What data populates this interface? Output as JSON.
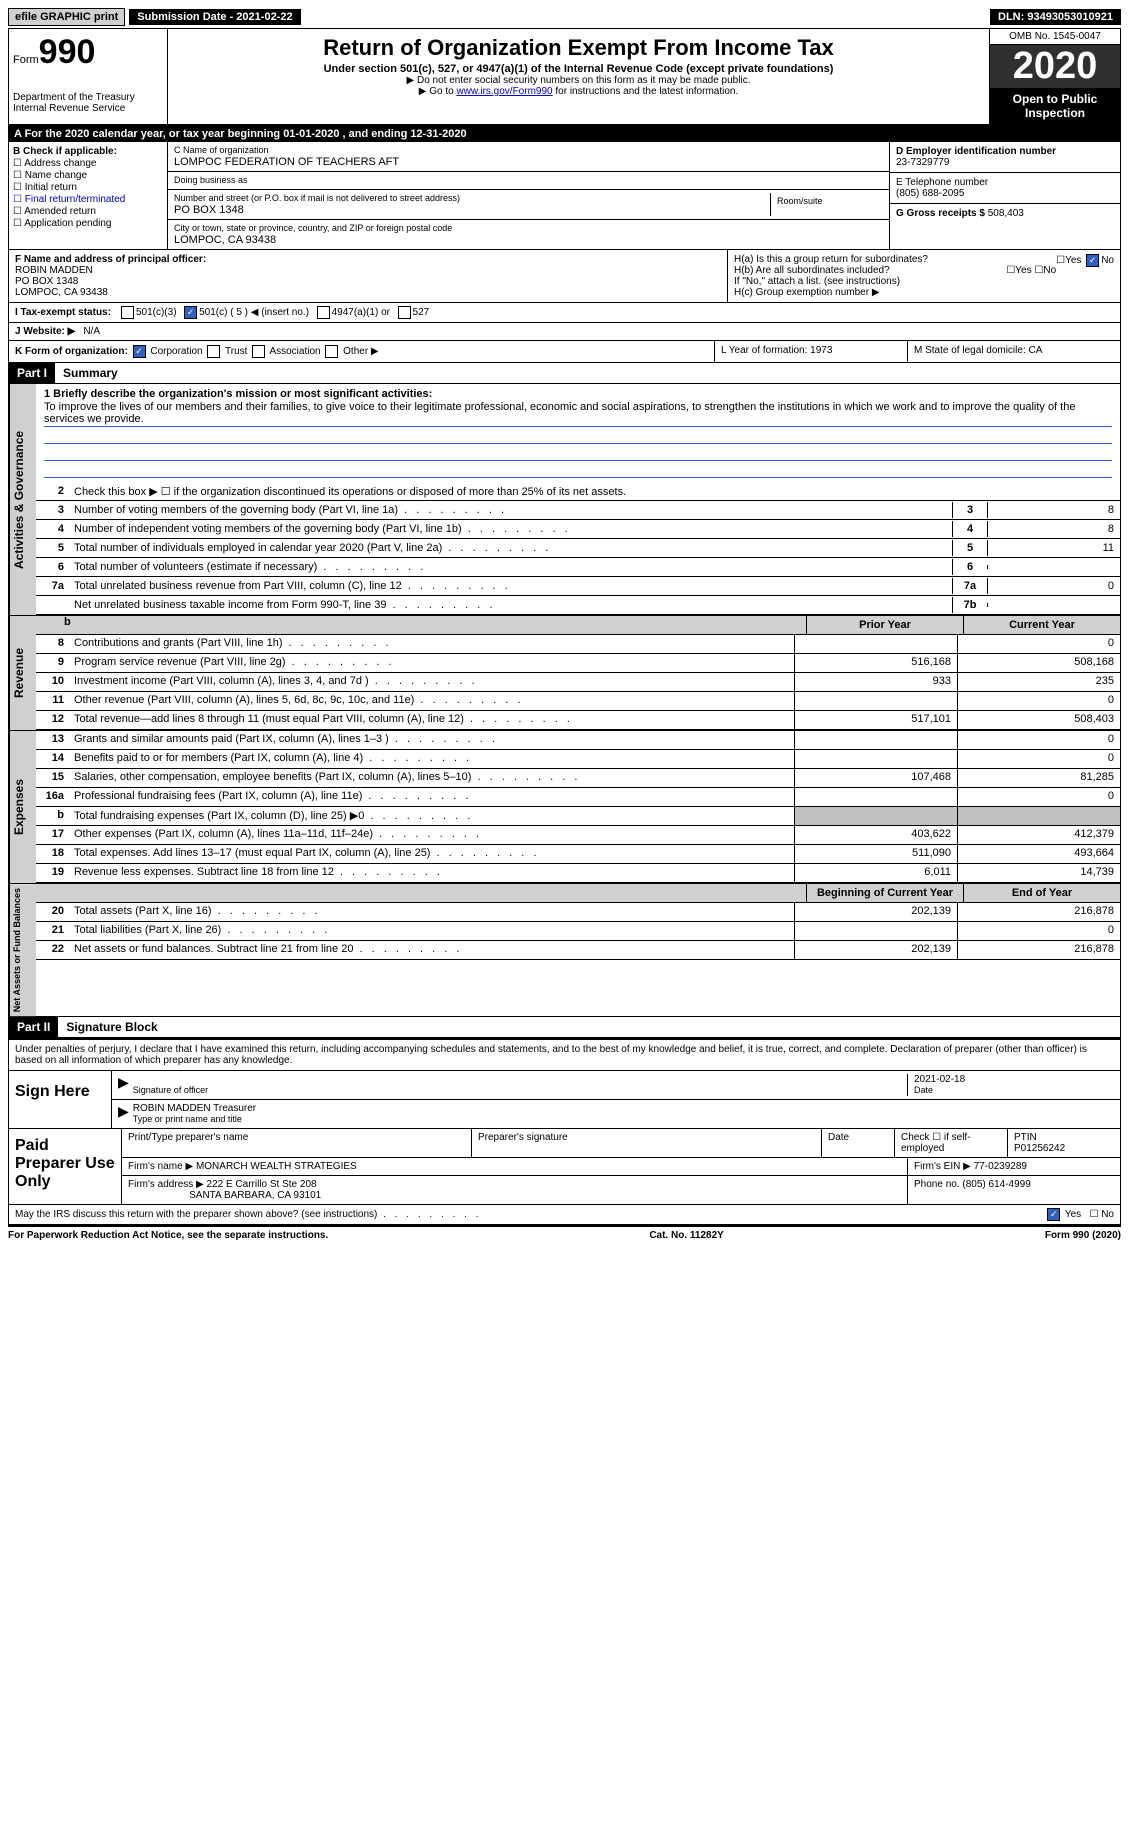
{
  "topbar": {
    "efile": "efile GRAPHIC print",
    "submission": "Submission Date - 2021-02-22",
    "dln": "DLN: 93493053010921"
  },
  "header": {
    "form_label": "Form",
    "form_num": "990",
    "dept": "Department of the Treasury",
    "irs": "Internal Revenue Service",
    "title": "Return of Organization Exempt From Income Tax",
    "subtitle": "Under section 501(c), 527, or 4947(a)(1) of the Internal Revenue Code (except private foundations)",
    "note1": "▶ Do not enter social security numbers on this form as it may be made public.",
    "note2_pre": "▶ Go to ",
    "note2_link": "www.irs.gov/Form990",
    "note2_post": " for instructions and the latest information.",
    "omb": "OMB No. 1545-0047",
    "year": "2020",
    "open": "Open to Public Inspection"
  },
  "period": "A For the 2020 calendar year, or tax year beginning 01-01-2020   , and ending 12-31-2020",
  "checkB": {
    "title": "B Check if applicable:",
    "items": [
      "Address change",
      "Name change",
      "Initial return",
      "Final return/terminated",
      "Amended return",
      "Application pending"
    ]
  },
  "blockC": {
    "name_label": "C Name of organization",
    "name": "LOMPOC FEDERATION OF TEACHERS AFT",
    "dba_label": "Doing business as",
    "dba": "",
    "street_label": "Number and street (or P.O. box if mail is not delivered to street address)",
    "street": "PO BOX 1348",
    "room_label": "Room/suite",
    "city_label": "City or town, state or province, country, and ZIP or foreign postal code",
    "city": "LOMPOC, CA  93438"
  },
  "blockD": {
    "ein_label": "D Employer identification number",
    "ein": "23-7329779",
    "tel_label": "E Telephone number",
    "tel": "(805) 688-2095",
    "gross_label": "G Gross receipts $",
    "gross": "508,403"
  },
  "blockF": {
    "label": "F  Name and address of principal officer:",
    "name": "ROBIN MADDEN",
    "street": "PO BOX 1348",
    "city": "LOMPOC, CA  93438"
  },
  "blockH": {
    "ha": "H(a)  Is this a group return for subordinates?",
    "hb": "H(b)  Are all subordinates included?",
    "hb_note": "If \"No,\" attach a list. (see instructions)",
    "hc": "H(c)  Group exemption number ▶"
  },
  "lineI": {
    "label": "I   Tax-exempt status:",
    "opts": [
      "501(c)(3)",
      "501(c) ( 5 ) ◀ (insert no.)",
      "4947(a)(1) or",
      "527"
    ]
  },
  "lineJ": {
    "label": "J   Website: ▶",
    "val": "N/A"
  },
  "lineK": {
    "label": "K Form of organization:",
    "opts": [
      "Corporation",
      "Trust",
      "Association",
      "Other ▶"
    ],
    "l": "L Year of formation: 1973",
    "m": "M State of legal domicile: CA"
  },
  "part1": {
    "label": "Part I",
    "title": "Summary",
    "mission_q": "1  Briefly describe the organization's mission or most significant activities:",
    "mission": "To improve the lives of our members and their families, to give voice to their legitimate professional, economic and social aspirations, to strengthen the institutions in which we work and to improve the quality of the services we provide.",
    "line2": "Check this box ▶ ☐  if the organization discontinued its operations or disposed of more than 25% of its net assets.",
    "gov_lines": [
      {
        "n": "3",
        "t": "Number of voting members of the governing body (Part VI, line 1a)",
        "c": "3",
        "v": "8"
      },
      {
        "n": "4",
        "t": "Number of independent voting members of the governing body (Part VI, line 1b)",
        "c": "4",
        "v": "8"
      },
      {
        "n": "5",
        "t": "Total number of individuals employed in calendar year 2020 (Part V, line 2a)",
        "c": "5",
        "v": "11"
      },
      {
        "n": "6",
        "t": "Total number of volunteers (estimate if necessary)",
        "c": "6",
        "v": ""
      },
      {
        "n": "7a",
        "t": "Total unrelated business revenue from Part VIII, column (C), line 12",
        "c": "7a",
        "v": "0"
      },
      {
        "n": "",
        "t": "Net unrelated business taxable income from Form 990-T, line 39",
        "c": "7b",
        "v": ""
      }
    ],
    "col_headers": {
      "b": "b",
      "prior": "Prior Year",
      "current": "Current Year"
    },
    "revenue": [
      {
        "n": "8",
        "t": "Contributions and grants (Part VIII, line 1h)",
        "p": "",
        "c": "0"
      },
      {
        "n": "9",
        "t": "Program service revenue (Part VIII, line 2g)",
        "p": "516,168",
        "c": "508,168"
      },
      {
        "n": "10",
        "t": "Investment income (Part VIII, column (A), lines 3, 4, and 7d )",
        "p": "933",
        "c": "235"
      },
      {
        "n": "11",
        "t": "Other revenue (Part VIII, column (A), lines 5, 6d, 8c, 9c, 10c, and 11e)",
        "p": "",
        "c": "0"
      },
      {
        "n": "12",
        "t": "Total revenue—add lines 8 through 11 (must equal Part VIII, column (A), line 12)",
        "p": "517,101",
        "c": "508,403"
      }
    ],
    "expenses": [
      {
        "n": "13",
        "t": "Grants and similar amounts paid (Part IX, column (A), lines 1–3 )",
        "p": "",
        "c": "0"
      },
      {
        "n": "14",
        "t": "Benefits paid to or for members (Part IX, column (A), line 4)",
        "p": "",
        "c": "0"
      },
      {
        "n": "15",
        "t": "Salaries, other compensation, employee benefits (Part IX, column (A), lines 5–10)",
        "p": "107,468",
        "c": "81,285"
      },
      {
        "n": "16a",
        "t": "Professional fundraising fees (Part IX, column (A), line 11e)",
        "p": "",
        "c": "0"
      },
      {
        "n": "b",
        "t": "Total fundraising expenses (Part IX, column (D), line 25) ▶0",
        "p": "grey",
        "c": "grey"
      },
      {
        "n": "17",
        "t": "Other expenses (Part IX, column (A), lines 11a–11d, 11f–24e)",
        "p": "403,622",
        "c": "412,379"
      },
      {
        "n": "18",
        "t": "Total expenses. Add lines 13–17 (must equal Part IX, column (A), line 25)",
        "p": "511,090",
        "c": "493,664"
      },
      {
        "n": "19",
        "t": "Revenue less expenses. Subtract line 18 from line 12",
        "p": "6,011",
        "c": "14,739"
      }
    ],
    "net_headers": {
      "beg": "Beginning of Current Year",
      "end": "End of Year"
    },
    "net": [
      {
        "n": "20",
        "t": "Total assets (Part X, line 16)",
        "p": "202,139",
        "c": "216,878"
      },
      {
        "n": "21",
        "t": "Total liabilities (Part X, line 26)",
        "p": "",
        "c": "0"
      },
      {
        "n": "22",
        "t": "Net assets or fund balances. Subtract line 21 from line 20",
        "p": "202,139",
        "c": "216,878"
      }
    ],
    "vert_gov": "Activities & Governance",
    "vert_rev": "Revenue",
    "vert_exp": "Expenses",
    "vert_net": "Net Assets or Fund Balances"
  },
  "part2": {
    "label": "Part II",
    "title": "Signature Block",
    "declare": "Under penalties of perjury, I declare that I have examined this return, including accompanying schedules and statements, and to the best of my knowledge and belief, it is true, correct, and complete. Declaration of preparer (other than officer) is based on all information of which preparer has any knowledge.",
    "sign_here": "Sign Here",
    "sig_date": "2021-02-18",
    "sig_officer_label": "Signature of officer",
    "sig_date_label": "Date",
    "sig_name": "ROBIN MADDEN  Treasurer",
    "sig_name_label": "Type or print name and title",
    "paid_label": "Paid Preparer Use Only",
    "prep_headers": {
      "name": "Print/Type preparer's name",
      "sig": "Preparer's signature",
      "date": "Date",
      "chk": "Check ☐ if self-employed",
      "ptin": "PTIN"
    },
    "ptin": "P01256242",
    "firm_name_label": "Firm's name    ▶",
    "firm_name": "MONARCH WEALTH STRATEGIES",
    "firm_ein_label": "Firm's EIN ▶",
    "firm_ein": "77-0239289",
    "firm_addr_label": "Firm's address ▶",
    "firm_addr1": "222 E Carrillo St Ste 208",
    "firm_addr2": "SANTA BARBARA, CA  93101",
    "firm_phone_label": "Phone no.",
    "firm_phone": "(805) 614-4999",
    "discuss": "May the IRS discuss this return with the preparer shown above? (see instructions)"
  },
  "footer": {
    "left": "For Paperwork Reduction Act Notice, see the separate instructions.",
    "mid": "Cat. No. 11282Y",
    "right": "Form 990 (2020)"
  }
}
